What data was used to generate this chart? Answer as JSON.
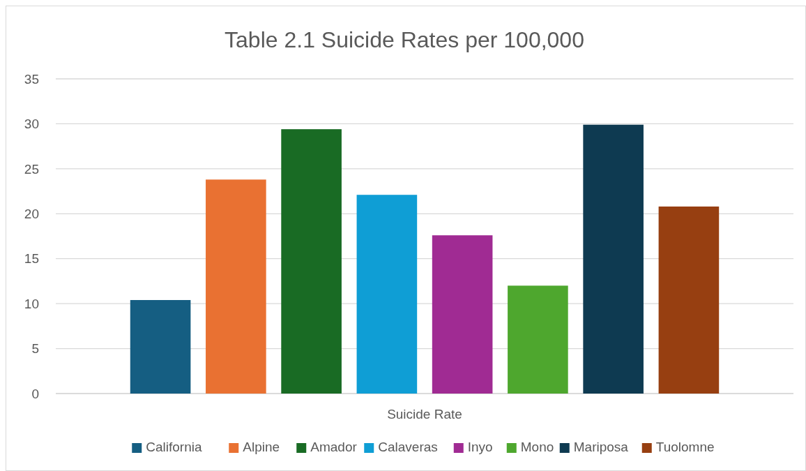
{
  "chart_data": {
    "type": "bar",
    "title": "Table 2.1 Suicide Rates per 100,000",
    "categories": [
      "Suicide Rate"
    ],
    "series": [
      {
        "name": "California",
        "color": "#155e82",
        "values": [
          10.4
        ]
      },
      {
        "name": "Alpine",
        "color": "#e97132",
        "values": [
          23.8
        ]
      },
      {
        "name": "Amador",
        "color": "#196b24",
        "values": [
          29.4
        ]
      },
      {
        "name": "Calaveras",
        "color": "#0f9ed5",
        "values": [
          22.1
        ]
      },
      {
        "name": "Inyo",
        "color": "#a02b93",
        "values": [
          17.6
        ]
      },
      {
        "name": "Mono",
        "color": "#4ea72e",
        "values": [
          12.0
        ]
      },
      {
        "name": "Mariposa",
        "color": "#0e3a51",
        "values": [
          29.9
        ]
      },
      {
        "name": "Tuolomne",
        "color": "#973f11",
        "values": [
          20.8
        ]
      }
    ],
    "ylim": [
      0,
      35
    ],
    "yticks": [
      0,
      5,
      10,
      15,
      20,
      25,
      30,
      35
    ],
    "grid": "y",
    "legend": "bottom"
  }
}
